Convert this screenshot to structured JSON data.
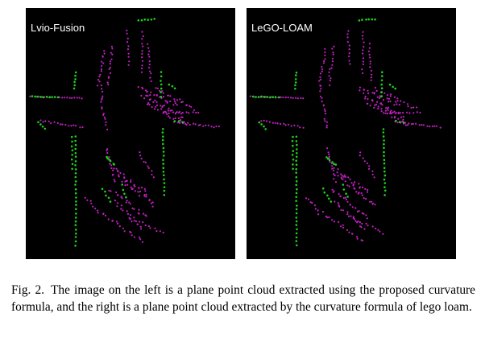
{
  "figure": {
    "panels": [
      {
        "id": "left",
        "label": "Lvio-Fusion",
        "variant": 0
      },
      {
        "id": "right",
        "label": "LeGO-LOAM",
        "variant": 1
      }
    ],
    "colors": {
      "background": "#000000",
      "plane_points": "#c020c0",
      "edge_points": "#20d020"
    }
  },
  "caption": {
    "label": "Fig. 2.",
    "text": "The image on the left is a plane point cloud extracted using the proposed curvature formula, and the right is a plane point cloud extracted by the curvature formula of lego loam."
  }
}
